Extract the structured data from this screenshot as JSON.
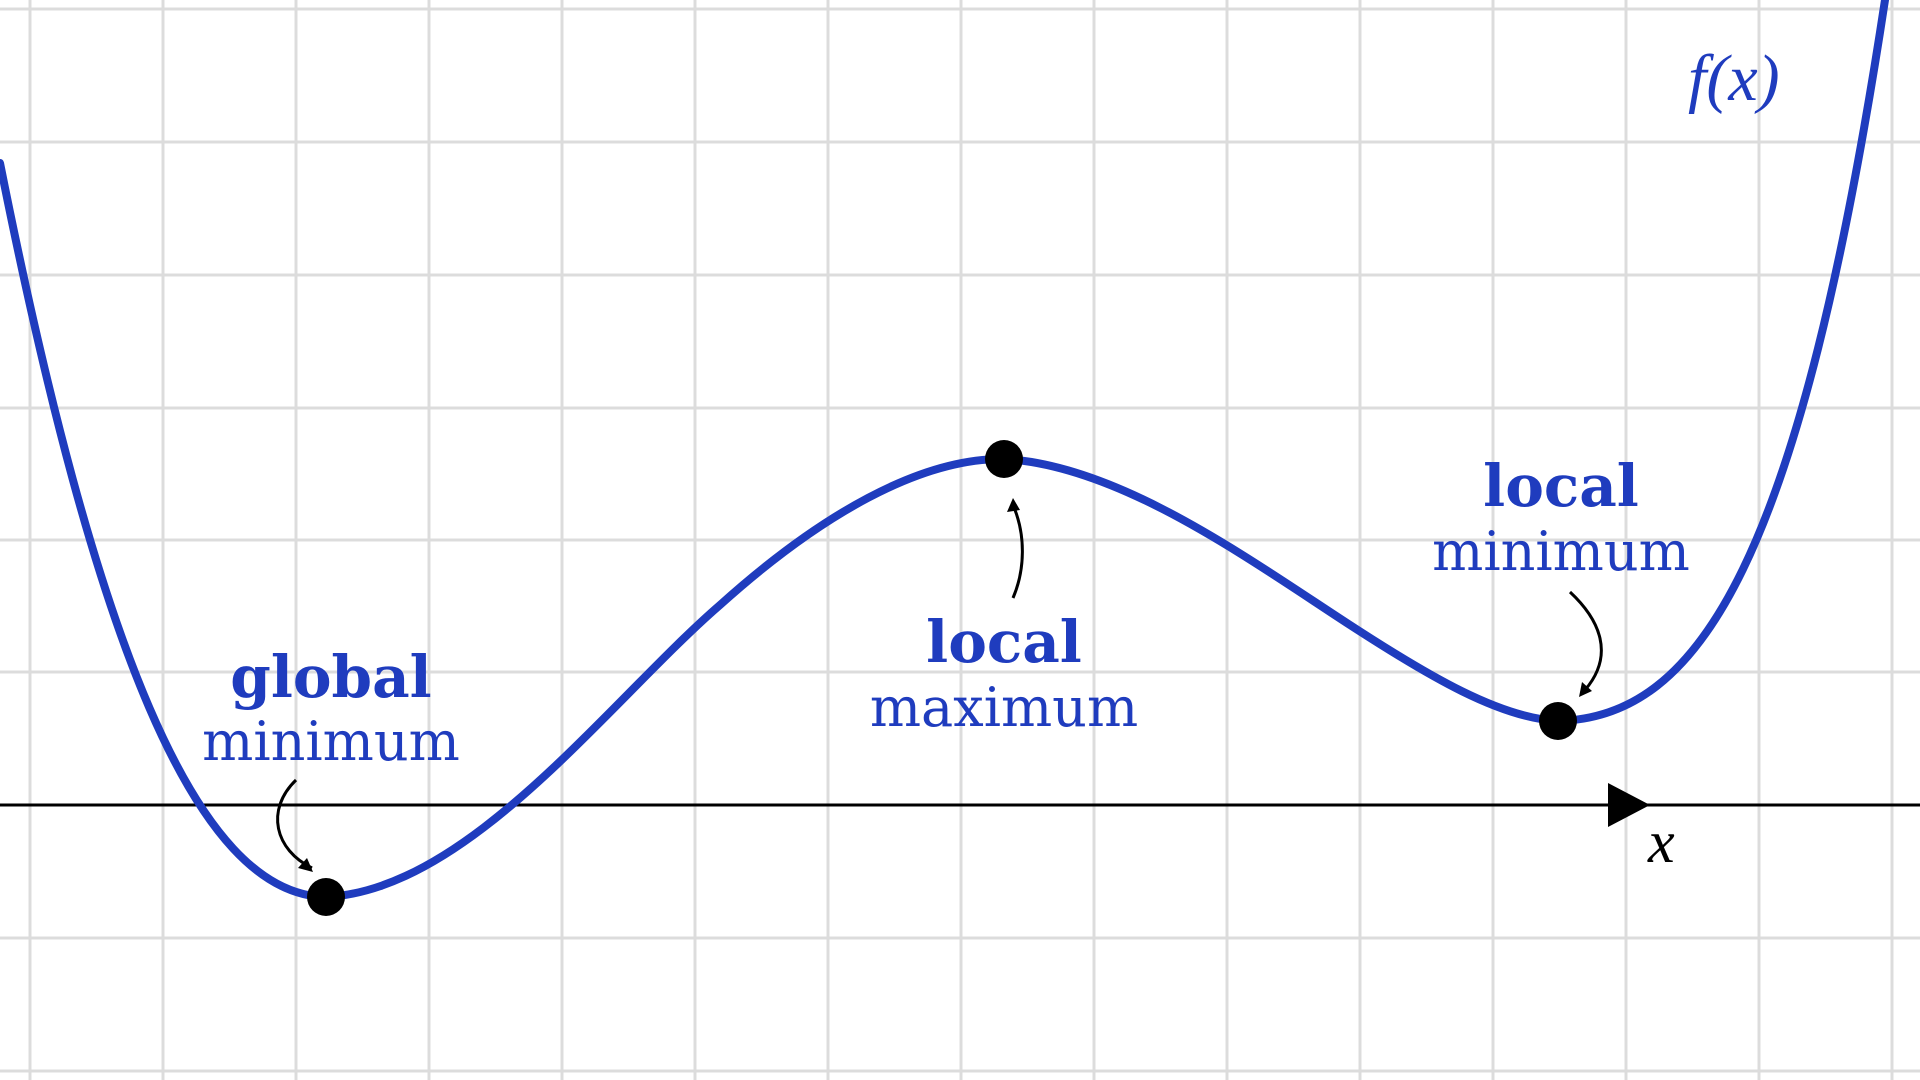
{
  "colors": {
    "curve": "#1f3cbe",
    "grid": "#dcdcdc",
    "axis": "#000000",
    "point": "#000000"
  },
  "function_label": "f(x)",
  "axis_label": "x",
  "annotations": {
    "global_min": {
      "line1": "global",
      "line2": "minimum"
    },
    "local_max": {
      "line1": "local",
      "line2": "maximum"
    },
    "local_min": {
      "line1": "local",
      "line2": "minimum"
    }
  }
}
